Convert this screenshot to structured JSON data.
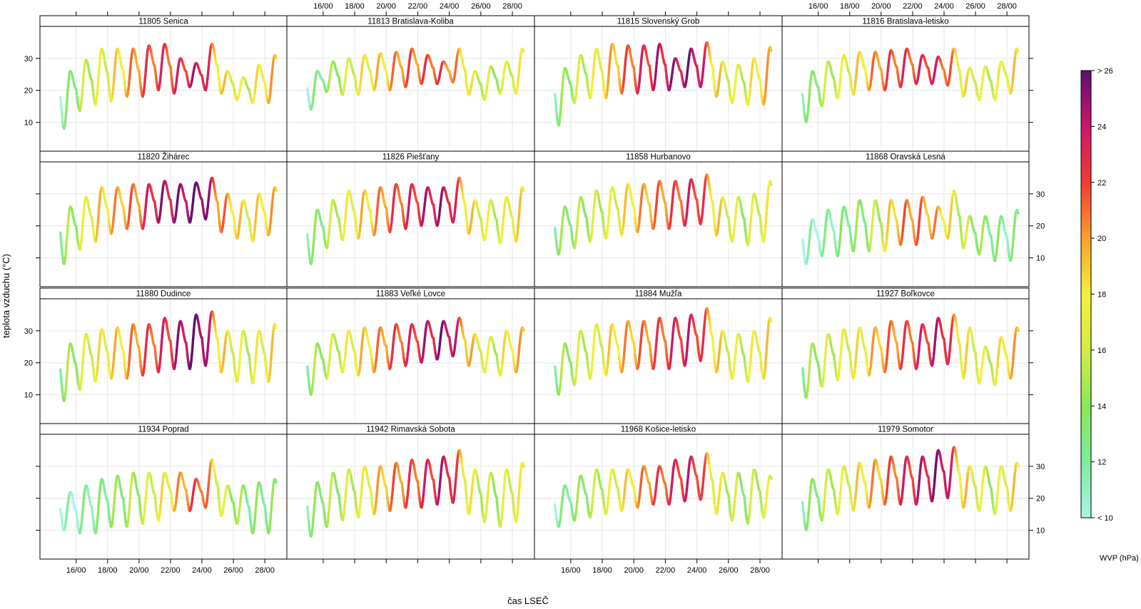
{
  "chart_data": {
    "type": "line",
    "layout": {
      "columns": 4,
      "rows": 4
    },
    "xlabel": "čas LSEČ",
    "ylabel": "teplota vzduchu (°C)",
    "x_ticks": [
      "16/00",
      "18/00",
      "20/00",
      "22/00",
      "24/00",
      "26/00",
      "28/00"
    ],
    "x_tick_values": [
      16,
      18,
      20,
      22,
      24,
      26,
      28
    ],
    "xlim": [
      13.7,
      29.4
    ],
    "y_ticks": [
      10,
      20,
      30
    ],
    "ylim": [
      1,
      40
    ],
    "grid": true,
    "colorkey": {
      "title": "WVP (hPa)",
      "labels": [
        "< 10",
        "12",
        "14",
        "16",
        "18",
        "20",
        "22",
        "24",
        "> 26"
      ],
      "values": [
        10,
        12,
        14,
        16,
        18,
        20,
        22,
        24,
        26
      ],
      "colors": [
        "#a8f5e4",
        "#7dec9b",
        "#8ce65a",
        "#d4ec47",
        "#f5f03a",
        "#f7a02d",
        "#f53a33",
        "#c8176b",
        "#5c0f73"
      ],
      "placement": "right"
    },
    "panels": [
      {
        "title": "11805 Senica",
        "tmin": [
          8,
          13.5,
          15.5,
          16.5,
          18,
          18,
          20,
          19,
          21,
          20,
          19,
          17,
          16,
          16
        ],
        "tmax": [
          26,
          29.5,
          33,
          33,
          33,
          34,
          34.5,
          30,
          28.5,
          34.5,
          26,
          24,
          28,
          31
        ],
        "wvp": [
          11,
          14,
          16,
          17,
          19,
          21,
          22,
          22,
          23,
          24,
          19,
          17,
          16,
          19
        ]
      },
      {
        "title": "11813 Bratislava-Koliba",
        "tmin": [
          14,
          19.5,
          18.5,
          18.5,
          20,
          20,
          21,
          22,
          22,
          22.5,
          18.5,
          17,
          19,
          19
        ],
        "tmax": [
          26,
          29,
          30,
          31,
          31.5,
          32,
          33,
          31,
          29,
          33,
          26,
          27.5,
          29,
          33
        ],
        "wvp": [
          11,
          13,
          15,
          17,
          18,
          19,
          21,
          21,
          22,
          21,
          18,
          16,
          15,
          17
        ]
      },
      {
        "title": "11815 Slovenský Grob",
        "tmin": [
          9,
          16,
          17.5,
          17.5,
          19,
          19,
          20,
          20,
          21,
          21,
          18,
          16,
          15.5,
          15.5
        ],
        "tmax": [
          27,
          31,
          33,
          34.5,
          34,
          34,
          34.5,
          30,
          33,
          35,
          29,
          28,
          30,
          33.5
        ],
        "wvp": [
          12,
          15,
          16,
          18,
          20,
          22,
          23,
          24,
          24,
          25,
          19,
          17,
          16,
          19
        ]
      },
      {
        "title": "11816 Bratislava-letisko",
        "tmin": [
          10,
          15,
          17.5,
          18.5,
          20,
          20,
          21,
          22,
          22,
          21.5,
          18,
          17,
          17,
          19
        ],
        "tmax": [
          26,
          29,
          31,
          32,
          32,
          32.5,
          33,
          31,
          30.5,
          33,
          27,
          27.5,
          29,
          33
        ],
        "wvp": [
          12,
          14,
          16,
          17,
          19,
          21,
          22,
          22,
          23,
          22,
          18,
          17,
          16,
          18
        ]
      },
      {
        "title": "11820 Žihárec",
        "tmin": [
          8,
          12.5,
          15,
          17.5,
          19,
          19,
          21,
          21,
          21,
          22,
          18,
          16,
          15,
          17
        ],
        "tmax": [
          26,
          29,
          32,
          32,
          33,
          33,
          34,
          33,
          33.5,
          35,
          30,
          28,
          30,
          32
        ],
        "wvp": [
          13,
          15,
          18,
          19,
          20,
          21,
          24,
          24,
          25,
          26,
          21,
          19,
          17,
          19
        ]
      },
      {
        "title": "11826 Piešťany",
        "tmin": [
          8,
          13,
          15.5,
          16,
          17,
          18,
          19,
          20,
          20,
          21,
          17.5,
          15.5,
          14.5,
          15
        ],
        "tmax": [
          25,
          28,
          31,
          31,
          32,
          33,
          33,
          32,
          32,
          35,
          28,
          28,
          29,
          32
        ],
        "wvp": [
          12,
          14,
          16,
          18,
          19,
          21,
          22,
          23,
          24,
          24,
          19,
          17,
          16,
          18
        ]
      },
      {
        "title": "11858 Hurbanovo",
        "tmin": [
          11,
          13,
          15,
          16,
          17,
          18,
          19,
          19,
          20,
          20.5,
          17,
          15,
          14,
          15
        ],
        "tmax": [
          26,
          29,
          31,
          32,
          33,
          33,
          34,
          34,
          34.5,
          36,
          29,
          29,
          30,
          34
        ],
        "wvp": [
          13,
          14,
          15,
          16,
          17,
          19,
          20,
          21,
          22,
          23,
          19,
          17,
          15,
          17
        ]
      },
      {
        "title": "11868 Oravská Lesná",
        "tmin": [
          8,
          10.5,
          10.5,
          12,
          12,
          12,
          14,
          14,
          16,
          16,
          13,
          11,
          9,
          9
        ],
        "tmax": [
          22,
          25,
          26,
          28,
          28,
          28,
          28,
          29,
          26,
          31,
          23,
          23,
          23,
          25
        ],
        "wvp": [
          10,
          11,
          12,
          13,
          14,
          16,
          20,
          21,
          20,
          19,
          16,
          14,
          13,
          12
        ]
      },
      {
        "title": "11880 Dudince",
        "tmin": [
          8,
          11.5,
          14,
          15,
          15,
          16,
          17,
          18,
          18,
          19,
          17,
          14,
          13.5,
          14
        ],
        "tmax": [
          26,
          29,
          30.5,
          31,
          32,
          32,
          34,
          33,
          35,
          36,
          30,
          30,
          30,
          32
        ],
        "wvp": [
          13,
          15,
          17,
          18,
          19,
          21,
          22,
          23,
          25,
          26,
          19,
          17,
          16,
          18
        ]
      },
      {
        "title": "11883 Veľké Lovce",
        "tmin": [
          10,
          15,
          17,
          16,
          17,
          18,
          19,
          20,
          21,
          22,
          19,
          17,
          16,
          17
        ],
        "tmax": [
          26,
          29,
          30,
          31,
          31,
          32,
          32,
          33,
          33,
          34,
          29,
          28,
          30,
          31
        ],
        "wvp": [
          13,
          15,
          16,
          18,
          19,
          21,
          22,
          23,
          24,
          25,
          20,
          17,
          16,
          19
        ]
      },
      {
        "title": "11884 Mužľa",
        "tmin": [
          10,
          13,
          15,
          16,
          17,
          18,
          18,
          18,
          19,
          20.5,
          17,
          15,
          14,
          15
        ],
        "tmax": [
          26,
          30,
          32,
          32,
          33,
          33,
          34,
          34,
          35,
          37,
          30,
          29,
          30,
          34
        ],
        "wvp": [
          13,
          15,
          16,
          17,
          19,
          20,
          21,
          22,
          23,
          23,
          19,
          17,
          16,
          18
        ]
      },
      {
        "title": "11927 Boľkovce",
        "tmin": [
          9,
          12.5,
          14.5,
          15,
          16,
          17,
          18,
          18,
          19,
          19.5,
          15,
          13.5,
          13,
          15
        ],
        "tmax": [
          26,
          29,
          30.5,
          31,
          31,
          33,
          33,
          32,
          34,
          35,
          31,
          25,
          28,
          31
        ],
        "wvp": [
          13,
          15,
          16,
          17,
          18,
          20,
          21,
          22,
          23,
          24,
          18,
          17,
          16,
          19
        ]
      },
      {
        "title": "11934 Poprad",
        "tmin": [
          10,
          9,
          9,
          11,
          11,
          12,
          13,
          16,
          16,
          17,
          14.5,
          12,
          9,
          9
        ],
        "tmax": [
          22,
          24,
          26,
          27,
          28,
          28,
          28,
          28,
          26,
          32,
          24,
          24,
          25,
          26
        ],
        "wvp": [
          10,
          11,
          12,
          13,
          14,
          15,
          17,
          18,
          21,
          22,
          17,
          15,
          13,
          13
        ]
      },
      {
        "title": "11942 Rimavská Sobota",
        "tmin": [
          8,
          11,
          13,
          14,
          15,
          16,
          17,
          17,
          18,
          18.5,
          15,
          12.5,
          11,
          12.5
        ],
        "tmax": [
          25,
          28,
          29,
          30,
          30,
          31,
          32,
          32,
          33,
          35,
          29,
          28,
          29,
          31
        ],
        "wvp": [
          12,
          14,
          15,
          16,
          18,
          20,
          21,
          22,
          23,
          24,
          18,
          16,
          15,
          17
        ]
      },
      {
        "title": "11968 Košice-letisko",
        "tmin": [
          11,
          13,
          14,
          15,
          16,
          17,
          18,
          18,
          19,
          19.5,
          15,
          13,
          12,
          14
        ],
        "tmax": [
          24,
          27,
          29,
          29,
          29,
          30,
          30,
          32,
          33,
          34,
          28,
          28,
          29,
          27
        ],
        "wvp": [
          11,
          13,
          14,
          16,
          17,
          19,
          21,
          22,
          23,
          23,
          18,
          16,
          14,
          16
        ]
      },
      {
        "title": "11979 Somotor",
        "tmin": [
          10,
          13,
          15,
          16,
          17,
          18,
          18,
          18,
          19,
          20,
          17,
          16,
          15,
          16
        ],
        "tmax": [
          26,
          29,
          30,
          31,
          32,
          33,
          33,
          33,
          35,
          36,
          30,
          30,
          30,
          31
        ],
        "wvp": [
          12,
          14,
          16,
          17,
          19,
          20,
          22,
          23,
          24,
          25,
          19,
          17,
          15,
          18
        ]
      }
    ]
  }
}
